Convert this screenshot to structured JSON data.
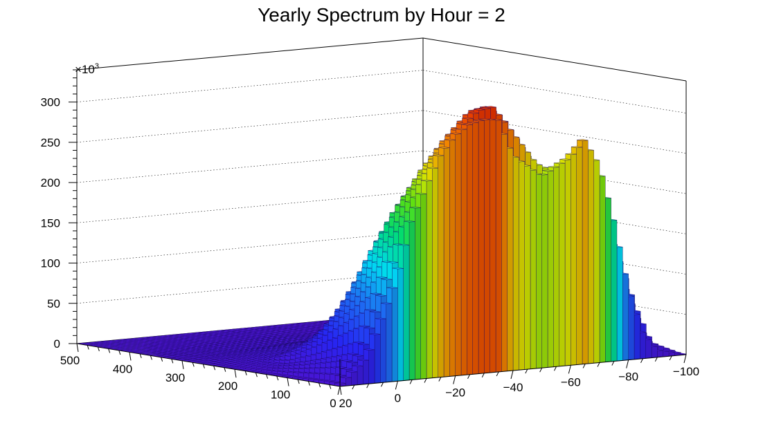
{
  "chart_data": {
    "type": "lego3d",
    "title": "Yearly Spectrum by Hour = 2",
    "x_axis": {
      "ticks": [
        0,
        100,
        200,
        300,
        400,
        500
      ],
      "range": [
        0,
        500
      ]
    },
    "y_axis": {
      "ticks": [
        20,
        0,
        -20,
        -40,
        -60,
        -80,
        -100
      ],
      "range": [
        20,
        -100
      ]
    },
    "z_axis": {
      "ticks": [
        0,
        50,
        100,
        150,
        200,
        250,
        300
      ],
      "tick_labels": [
        "0",
        "50",
        "100",
        "150",
        "200",
        "250",
        "300"
      ],
      "range": [
        0,
        340
      ],
      "multiplier": "10",
      "multiplier_exp": "3"
    },
    "grid": true,
    "surface_description_rows": [
      {
        "x": 0,
        "y_profile": [
          [
            20,
            0
          ],
          [
            10,
            30
          ],
          [
            0,
            120
          ],
          [
            -5,
            200
          ],
          [
            -10,
            240
          ],
          [
            -15,
            280
          ],
          [
            -20,
            300
          ],
          [
            -25,
            310
          ],
          [
            -30,
            310
          ],
          [
            -35,
            305
          ],
          [
            -40,
            250
          ],
          [
            -45,
            240
          ],
          [
            -50,
            230
          ],
          [
            -55,
            250
          ],
          [
            -60,
            270
          ],
          [
            -65,
            300
          ],
          [
            -70,
            260
          ],
          [
            -75,
            180
          ],
          [
            -80,
            80
          ],
          [
            -85,
            20
          ],
          [
            -90,
            5
          ],
          [
            -100,
            0
          ]
        ]
      },
      {
        "x": 20,
        "y_profile": [
          [
            20,
            0
          ],
          [
            10,
            40
          ],
          [
            0,
            140
          ],
          [
            -10,
            230
          ],
          [
            -20,
            290
          ],
          [
            -30,
            330
          ],
          [
            -35,
            335
          ],
          [
            -40,
            320
          ],
          [
            -50,
            260
          ],
          [
            -60,
            220
          ],
          [
            -70,
            200
          ],
          [
            -80,
            120
          ],
          [
            -90,
            20
          ],
          [
            -100,
            0
          ]
        ]
      },
      {
        "x": 60,
        "y_profile": [
          [
            20,
            0
          ],
          [
            10,
            30
          ],
          [
            0,
            110
          ],
          [
            -10,
            200
          ],
          [
            -20,
            250
          ],
          [
            -30,
            270
          ],
          [
            -40,
            260
          ],
          [
            -50,
            220
          ],
          [
            -60,
            170
          ],
          [
            -70,
            130
          ],
          [
            -80,
            60
          ],
          [
            -90,
            10
          ],
          [
            -100,
            0
          ]
        ]
      },
      {
        "x": 100,
        "y_profile": [
          [
            20,
            0
          ],
          [
            10,
            20
          ],
          [
            0,
            80
          ],
          [
            -10,
            150
          ],
          [
            -20,
            190
          ],
          [
            -30,
            200
          ],
          [
            -40,
            190
          ],
          [
            -50,
            150
          ],
          [
            -60,
            110
          ],
          [
            -70,
            70
          ],
          [
            -80,
            30
          ],
          [
            -90,
            5
          ],
          [
            -100,
            0
          ]
        ]
      },
      {
        "x": 150,
        "y_profile": [
          [
            20,
            0
          ],
          [
            10,
            10
          ],
          [
            0,
            40
          ],
          [
            -10,
            70
          ],
          [
            -20,
            90
          ],
          [
            -30,
            90
          ],
          [
            -40,
            80
          ],
          [
            -50,
            60
          ],
          [
            -60,
            40
          ],
          [
            -70,
            20
          ],
          [
            -80,
            10
          ],
          [
            -100,
            0
          ]
        ]
      },
      {
        "x": 200,
        "y_profile": [
          [
            20,
            0
          ],
          [
            0,
            15
          ],
          [
            -20,
            30
          ],
          [
            -30,
            30
          ],
          [
            -50,
            20
          ],
          [
            -70,
            8
          ],
          [
            -100,
            0
          ]
        ]
      },
      {
        "x": 300,
        "y_profile": [
          [
            20,
            0
          ],
          [
            0,
            6
          ],
          [
            -30,
            10
          ],
          [
            -60,
            5
          ],
          [
            -100,
            0
          ]
        ]
      },
      {
        "x": 400,
        "y_profile": [
          [
            20,
            0
          ],
          [
            -30,
            3
          ],
          [
            -100,
            0
          ]
        ]
      },
      {
        "x": 500,
        "y_profile": [
          [
            20,
            0
          ],
          [
            -100,
            0
          ]
        ]
      }
    ]
  }
}
